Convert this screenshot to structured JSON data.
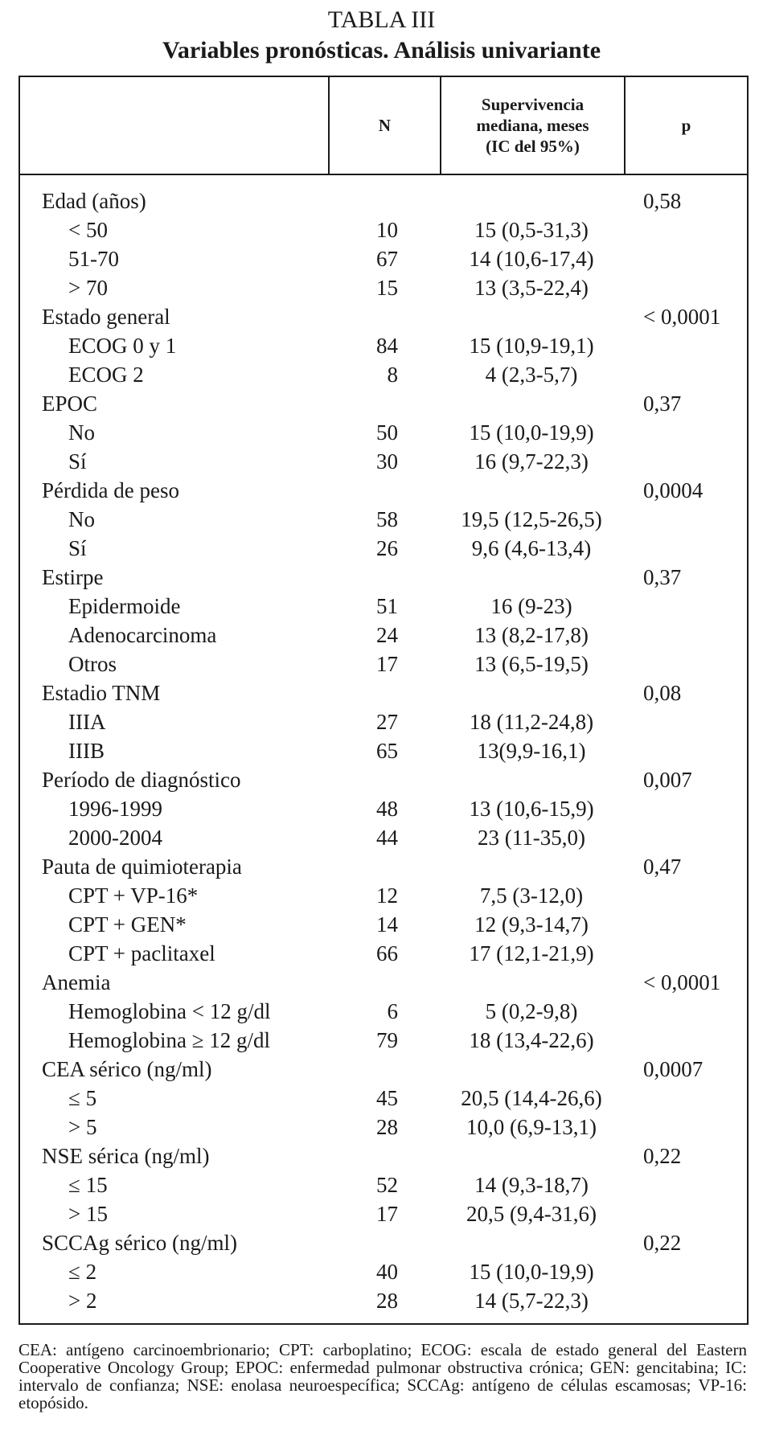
{
  "title": "TABLA III",
  "subtitle": "Variables pronósticas. Análisis univariante",
  "header": {
    "n": "N",
    "survival": [
      "Supervivencia",
      "mediana, meses",
      "(IC del 95%)"
    ],
    "p": "p"
  },
  "groups": [
    {
      "label": "Edad (años)",
      "p": "0,58",
      "rows": [
        {
          "label": "< 50",
          "n": "10",
          "survival": "15 (0,5-31,3)"
        },
        {
          "label": "51-70",
          "n": "67",
          "survival": "14 (10,6-17,4)"
        },
        {
          "label": "> 70",
          "n": "15",
          "survival": "13 (3,5-22,4)"
        }
      ]
    },
    {
      "label": "Estado general",
      "p": "< 0,0001",
      "rows": [
        {
          "label": "ECOG 0 y 1",
          "n": "84",
          "survival": "15 (10,9-19,1)"
        },
        {
          "label": "ECOG 2",
          "n": "8",
          "survival": "4 (2,3-5,7)"
        }
      ]
    },
    {
      "label": "EPOC",
      "p": "0,37",
      "rows": [
        {
          "label": "No",
          "n": "50",
          "survival": "15 (10,0-19,9)"
        },
        {
          "label": "Sí",
          "n": "30",
          "survival": "16 (9,7-22,3)"
        }
      ]
    },
    {
      "label": "Pérdida de peso",
      "p": "0,0004",
      "rows": [
        {
          "label": "No",
          "n": "58",
          "survival": "19,5 (12,5-26,5)"
        },
        {
          "label": "Sí",
          "n": "26",
          "survival": "9,6 (4,6-13,4)"
        }
      ]
    },
    {
      "label": "Estirpe",
      "p": "0,37",
      "rows": [
        {
          "label": "Epidermoide",
          "n": "51",
          "survival": "16 (9-23)"
        },
        {
          "label": "Adenocarcinoma",
          "n": "24",
          "survival": "13 (8,2-17,8)"
        },
        {
          "label": "Otros",
          "n": "17",
          "survival": "13 (6,5-19,5)"
        }
      ]
    },
    {
      "label": "Estadio TNM",
      "p": "0,08",
      "rows": [
        {
          "label": "IIIA",
          "n": "27",
          "survival": "18 (11,2-24,8)"
        },
        {
          "label": "IIIB",
          "n": "65",
          "survival": "13(9,9-16,1)"
        }
      ]
    },
    {
      "label": "Período de diagnóstico",
      "p": "0,007",
      "rows": [
        {
          "label": "1996-1999",
          "n": "48",
          "survival": "13 (10,6-15,9)"
        },
        {
          "label": "2000-2004",
          "n": "44",
          "survival": "23 (11-35,0)"
        }
      ]
    },
    {
      "label": "Pauta de quimioterapia",
      "p": "0,47",
      "rows": [
        {
          "label": "CPT + VP-16*",
          "n": "12",
          "survival": "7,5 (3-12,0)"
        },
        {
          "label": "CPT + GEN*",
          "n": "14",
          "survival": "12 (9,3-14,7)"
        },
        {
          "label": "CPT + paclitaxel",
          "n": "66",
          "survival": "17 (12,1-21,9)"
        }
      ]
    },
    {
      "label": "Anemia",
      "p": "< 0,0001",
      "rows": [
        {
          "label": "Hemoglobina < 12 g/dl",
          "n": "6",
          "survival": "5 (0,2-9,8)"
        },
        {
          "label": "Hemoglobina ≥ 12 g/dl",
          "n": "79",
          "survival": "18 (13,4-22,6)"
        }
      ]
    },
    {
      "label": "CEA sérico (ng/ml)",
      "p": "0,0007",
      "rows": [
        {
          "label": "≤ 5",
          "n": "45",
          "survival": "20,5 (14,4-26,6)"
        },
        {
          "label": "> 5",
          "n": "28",
          "survival": "10,0 (6,9-13,1)"
        }
      ]
    },
    {
      "label": "NSE sérica (ng/ml)",
      "p": "0,22",
      "rows": [
        {
          "label": "≤ 15",
          "n": "52",
          "survival": "14 (9,3-18,7)"
        },
        {
          "label": "> 15",
          "n": "17",
          "survival": "20,5 (9,4-31,6)"
        }
      ]
    },
    {
      "label": "SCCAg sérico (ng/ml)",
      "p": "0,22",
      "rows": [
        {
          "label": "≤ 2",
          "n": "40",
          "survival": "15 (10,0-19,9)"
        },
        {
          "label": "> 2",
          "n": "28",
          "survival": "14 (5,7-22,3)"
        }
      ]
    }
  ],
  "footnote": "CEA: antígeno carcinoembrionario; CPT: carboplatino; ECOG: escala de estado general del Eastern Cooperative Oncology Group; EPOC: enfermedad pulmonar obstructiva crónica; GEN: gencitabina; IC: intervalo de confianza; NSE: enolasa neuroespecífica; SCCAg: antígeno de células escamosas; VP-16: etopósido."
}
